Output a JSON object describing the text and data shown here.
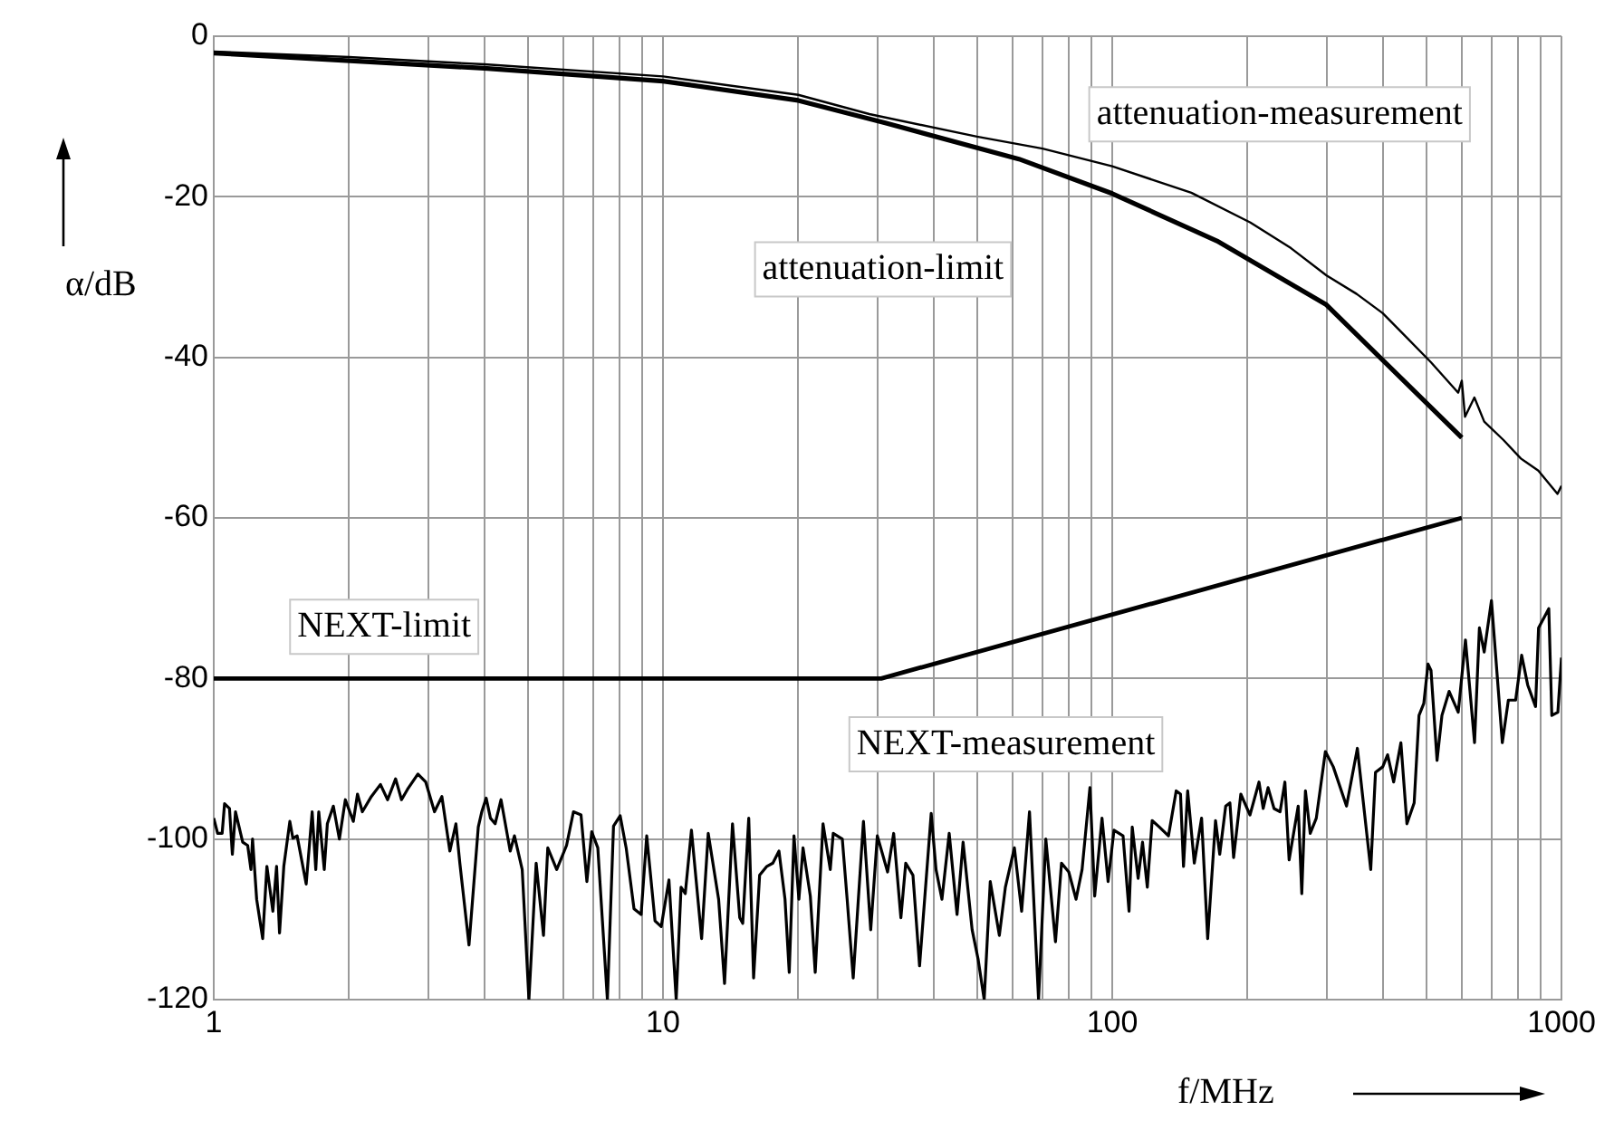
{
  "chart_data": {
    "type": "line",
    "xlabel": "f/MHz",
    "ylabel": "α/dB",
    "log": "x",
    "grid": true,
    "legend": false,
    "marker": "none",
    "line_style": "solid",
    "xlim": [
      1,
      1000
    ],
    "ylim": [
      -120,
      0
    ],
    "xticks": [
      1,
      {
        "value": 2,
        "label": null
      },
      {
        "value": 3,
        "label": null
      },
      {
        "value": 4,
        "label": null
      },
      {
        "value": 5,
        "label": null
      },
      {
        "value": 6,
        "label": null
      },
      {
        "value": 7,
        "label": null
      },
      {
        "value": 8,
        "label": null
      },
      {
        "value": 9,
        "label": null
      },
      10,
      {
        "value": 20,
        "label": null
      },
      {
        "value": 30,
        "label": null
      },
      {
        "value": 40,
        "label": null
      },
      {
        "value": 50,
        "label": null
      },
      {
        "value": 60,
        "label": null
      },
      {
        "value": 70,
        "label": null
      },
      {
        "value": 80,
        "label": null
      },
      {
        "value": 90,
        "label": null
      },
      100,
      {
        "value": 200,
        "label": null
      },
      {
        "value": 300,
        "label": null
      },
      {
        "value": 400,
        "label": null
      },
      {
        "value": 500,
        "label": null
      },
      {
        "value": 600,
        "label": null
      },
      {
        "value": 700,
        "label": null
      },
      {
        "value": 800,
        "label": null
      },
      {
        "value": 900,
        "label": null
      },
      1000
    ],
    "yticks": [
      -120,
      -100,
      -80,
      -60,
      -40,
      -20,
      0
    ],
    "series": [
      {
        "name": "attenuation-measurement",
        "color": "#000000",
        "x": [
          1,
          2,
          4,
          10,
          20,
          28.8,
          50,
          70,
          100,
          150,
          203,
          250,
          300,
          350,
          400,
          450,
          512,
          589,
          600,
          610,
          640,
          673,
          743,
          812,
          888,
          980,
          1000
        ],
        "values": [
          -1.9,
          -2.6,
          -3.5,
          -5.0,
          -7.3,
          -9.7,
          -12.5,
          -14.0,
          -16.2,
          -19.5,
          -23.2,
          -26.4,
          -29.8,
          -32.1,
          -34.5,
          -37.4,
          -40.6,
          -44.4,
          -42.9,
          -47.4,
          -45,
          -48,
          -50.3,
          -52.6,
          -54.1,
          -57,
          -56
        ]
      },
      {
        "name": "attenuation-limit",
        "color": "#000000",
        "x": [
          1,
          4,
          10,
          20,
          31.25,
          62,
          100,
          171,
          299,
          600
        ],
        "values": [
          -2.1,
          -4,
          -5.6,
          -8,
          -10.8,
          -15.3,
          -19.6,
          -25.5,
          -33.4,
          -50
        ]
      },
      {
        "name": "NEXT-limit",
        "color": "#000000",
        "x": [
          1,
          30.6,
          600
        ],
        "values": [
          -80,
          -80,
          -60
        ]
      },
      {
        "name": "NEXT-measurement",
        "color": "#000000",
        "x": [
          1,
          1.02,
          1.044,
          1.057,
          1.084,
          1.1,
          1.118,
          1.16,
          1.19,
          1.21,
          1.22,
          1.246,
          1.285,
          1.313,
          1.354,
          1.38,
          1.401,
          1.432,
          1.477,
          1.5,
          1.533,
          1.606,
          1.656,
          1.687,
          1.713,
          1.762,
          1.79,
          1.846,
          1.904,
          1.963,
          2.045,
          2.089,
          2.142,
          2.243,
          2.35,
          2.438,
          2.54,
          2.618,
          2.7,
          2.847,
          2.964,
          3.1,
          3.22,
          3.354,
          3.46,
          3.53,
          3.7,
          3.88,
          3.95,
          4.04,
          4.13,
          4.23,
          4.36,
          4.57,
          4.67,
          4.86,
          5.03,
          5.22,
          5.42,
          5.54,
          5.8,
          6.1,
          6.32,
          6.57,
          6.77,
          6.94,
          7.16,
          7.52,
          7.76,
          8.03,
          8.28,
          8.62,
          8.94,
          9.2,
          9.6,
          9.91,
          10.31,
          10.7,
          10.97,
          11.21,
          11.57,
          12.19,
          12.61,
          13.3,
          13.71,
          14.28,
          14.82,
          15.05,
          15.52,
          15.91,
          16.41,
          17.03,
          17.56,
          18.12,
          18.69,
          19.1,
          19.57,
          20.07,
          20.5,
          21.28,
          21.82,
          22.71,
          23.57,
          23.93,
          25.07,
          25.7,
          26.51,
          27.94,
          29,
          30,
          31.62,
          32.62,
          33.85,
          34.7,
          36.01,
          37.25,
          39.54,
          40.53,
          41.78,
          43.36,
          45.14,
          46.56,
          48.77,
          50.3,
          51.88,
          53.52,
          56.07,
          57.83,
          60.57,
          62.86,
          65.44,
          68.55,
          71.15,
          74.76,
          77.1,
          80.03,
          83.07,
          85.68,
          89.2,
          91.4,
          94.9,
          97.9,
          100.9,
          105.7,
          109,
          110.8,
          114.2,
          116.8,
          119.7,
          122.7,
          127.3,
          133.4,
          138.8,
          141.9,
          144.1,
          147.2,
          152.3,
          158.1,
          163.1,
          169.8,
          173.5,
          178.9,
          182.8,
          186.3,
          193.3,
          202.6,
          212.2,
          216.8,
          222.3,
          229.2,
          236.4,
          242.3,
          247.6,
          259.4,
          264.2,
          269.2,
          275.9,
          284.6,
          298.2,
          310.5,
          332.3,
          351.3,
          376.2,
          385.5,
          400.1,
          410.2,
          423.1,
          439.1,
          452.9,
          470,
          481.8,
          493.8,
          504.6,
          512.4,
          528.5,
          541.9,
          562.3,
          589.1,
          611.4,
          640.5,
          656.6,
          673,
          698.5,
          738.5,
          761.7,
          790.6,
          815.4,
          841,
          875.6,
          889.2,
          937.1,
          951.7,
          981.7,
          1000
        ],
        "values": [
          -97.4,
          -99.3,
          -99.3,
          -95.6,
          -96.2,
          -101.9,
          -96.6,
          -100.4,
          -100.8,
          -103.8,
          -100,
          -107.5,
          -112.4,
          -103.4,
          -109,
          -103.4,
          -111.7,
          -103.4,
          -97.8,
          -99.9,
          -99.6,
          -105.6,
          -96.6,
          -103.8,
          -96.6,
          -103.8,
          -98.1,
          -95.9,
          -100,
          -95.1,
          -97.8,
          -94.4,
          -96.6,
          -94.7,
          -93.2,
          -95.1,
          -92.5,
          -95.1,
          -93.8,
          -91.9,
          -92.9,
          -96.6,
          -94.7,
          -101.5,
          -98.1,
          -103,
          -113.2,
          -98.5,
          -96.6,
          -94.9,
          -97.4,
          -98.1,
          -95.1,
          -101.5,
          -99.6,
          -103.8,
          -120,
          -103,
          -112,
          -101.1,
          -103.8,
          -100.8,
          -96.6,
          -97,
          -105.3,
          -99.1,
          -101.1,
          -120,
          -98.4,
          -97.1,
          -101.1,
          -108.7,
          -109.4,
          -99.6,
          -110.2,
          -110.9,
          -105.1,
          -120,
          -106,
          -106.8,
          -98.9,
          -112.4,
          -99.3,
          -107.5,
          -118,
          -98.1,
          -109.8,
          -110.5,
          -97.4,
          -117.3,
          -104.5,
          -103.4,
          -103,
          -101.5,
          -107.5,
          -116.6,
          -99.6,
          -107.5,
          -101.1,
          -107.1,
          -116.6,
          -98.1,
          -103.8,
          -99.3,
          -100,
          -107.5,
          -117.3,
          -97.8,
          -111.3,
          -99.6,
          -104.1,
          -99.3,
          -109.8,
          -103,
          -104.5,
          -115.8,
          -96.8,
          -103.8,
          -107.5,
          -99.3,
          -109.4,
          -100.4,
          -111.3,
          -115,
          -120,
          -105.3,
          -112,
          -106,
          -101.1,
          -109,
          -96.6,
          -120,
          -100,
          -112.8,
          -103,
          -104.1,
          -107.5,
          -103.8,
          -93.6,
          -107.1,
          -97.4,
          -105.3,
          -98.9,
          -99.6,
          -109,
          -98.5,
          -104.9,
          -100.4,
          -106,
          -97.7,
          -98.5,
          -99.6,
          -94,
          -94.4,
          -103.4,
          -94,
          -103,
          -97.4,
          -112.4,
          -97.7,
          -101.9,
          -95.9,
          -95.5,
          -102.3,
          -94.4,
          -97,
          -92.9,
          -96.2,
          -93.6,
          -96.2,
          -96.6,
          -92.9,
          -102.6,
          -95.9,
          -106.8,
          -94,
          -99.3,
          -97.4,
          -89.1,
          -91,
          -95.9,
          -88.7,
          -103.8,
          -91.7,
          -91,
          -89.5,
          -92.9,
          -88,
          -98.1,
          -95.5,
          -84.6,
          -83.1,
          -78.2,
          -79,
          -90.2,
          -84.6,
          -81.6,
          -84.2,
          -75.2,
          -88,
          -73.7,
          -76.7,
          -70.3,
          -88,
          -82.7,
          -82.7,
          -77.1,
          -80.8,
          -83.5,
          -73.7,
          -71.3,
          -84.6,
          -84.2,
          -77.4
        ]
      }
    ]
  }
}
